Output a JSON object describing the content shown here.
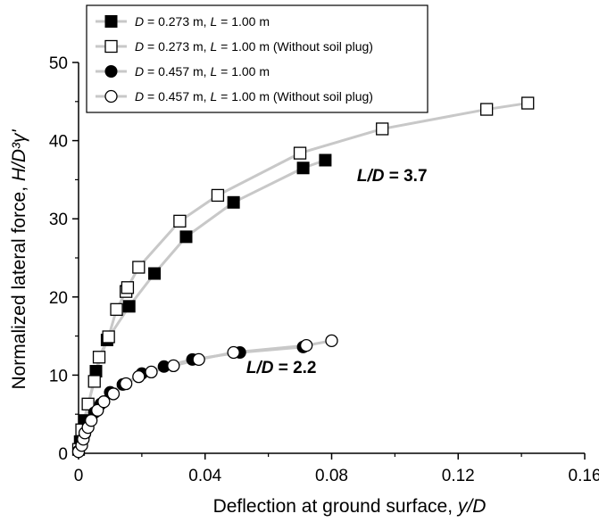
{
  "chart_data": {
    "type": "scatter",
    "xlabel": "Deflection at ground surface, y/D",
    "ylabel": "Normalized lateral force, H/D³γ'",
    "xlim": [
      0,
      0.16
    ],
    "ylim": [
      0,
      50
    ],
    "xticks": [
      "0",
      "0.04",
      "0.08",
      "0.12",
      "0.16"
    ],
    "yticks": [
      "0",
      "10",
      "20",
      "30",
      "40",
      "50"
    ],
    "legend_position": "top-left",
    "grid": false,
    "line_color": "#c8c8c8",
    "series": [
      {
        "name": "D = 0.273 m, L = 1.00 m",
        "marker": "filled-square",
        "points": [
          [
            0.0005,
            1.5
          ],
          [
            0.001,
            3.0
          ],
          [
            0.002,
            4.2
          ],
          [
            0.0055,
            10.5
          ],
          [
            0.009,
            14.5
          ],
          [
            0.016,
            18.8
          ],
          [
            0.024,
            23.0
          ],
          [
            0.034,
            27.7
          ],
          [
            0.049,
            32.1
          ],
          [
            0.071,
            36.5
          ],
          [
            0.078,
            37.5
          ]
        ]
      },
      {
        "name": "D = 0.273 m, L = 1.00 m  (Without soil plug)",
        "marker": "open-square",
        "points": [
          [
            0.0,
            0.5
          ],
          [
            0.001,
            3.0
          ],
          [
            0.003,
            6.3
          ],
          [
            0.005,
            9.2
          ],
          [
            0.0065,
            12.3
          ],
          [
            0.0095,
            14.9
          ],
          [
            0.012,
            18.4
          ],
          [
            0.015,
            20.7
          ],
          [
            0.0155,
            21.2
          ],
          [
            0.019,
            23.8
          ],
          [
            0.032,
            29.7
          ],
          [
            0.044,
            33.0
          ],
          [
            0.07,
            38.4
          ],
          [
            0.096,
            41.5
          ],
          [
            0.129,
            44.0
          ],
          [
            0.142,
            44.8
          ]
        ]
      },
      {
        "name": "D = 0.457 m, L = 1.00 m",
        "marker": "filled-circle",
        "points": [
          [
            0.0,
            0.3
          ],
          [
            0.001,
            1.5
          ],
          [
            0.002,
            2.5
          ],
          [
            0.003,
            3.8
          ],
          [
            0.005,
            5.2
          ],
          [
            0.007,
            6.3
          ],
          [
            0.01,
            7.8
          ],
          [
            0.014,
            8.8
          ],
          [
            0.02,
            10.2
          ],
          [
            0.027,
            11.1
          ],
          [
            0.036,
            12.0
          ],
          [
            0.051,
            12.9
          ],
          [
            0.071,
            13.6
          ]
        ]
      },
      {
        "name": "D = 0.457 m, L = 1.00 m (Without soil plug)",
        "marker": "open-circle",
        "points": [
          [
            0.0,
            0.2
          ],
          [
            0.001,
            1.0
          ],
          [
            0.0015,
            1.8
          ],
          [
            0.002,
            2.6
          ],
          [
            0.003,
            3.3
          ],
          [
            0.004,
            4.2
          ],
          [
            0.006,
            5.5
          ],
          [
            0.008,
            6.6
          ],
          [
            0.011,
            7.6
          ],
          [
            0.015,
            8.9
          ],
          [
            0.019,
            9.8
          ],
          [
            0.023,
            10.4
          ],
          [
            0.03,
            11.2
          ],
          [
            0.038,
            12.0
          ],
          [
            0.049,
            12.9
          ],
          [
            0.072,
            13.8
          ],
          [
            0.08,
            14.4
          ]
        ]
      }
    ],
    "annotations": [
      {
        "text": "L/D = 3.7",
        "x": 0.088,
        "y": 34.8
      },
      {
        "text": "L/D = 2.2",
        "x": 0.053,
        "y": 10.3
      }
    ]
  }
}
